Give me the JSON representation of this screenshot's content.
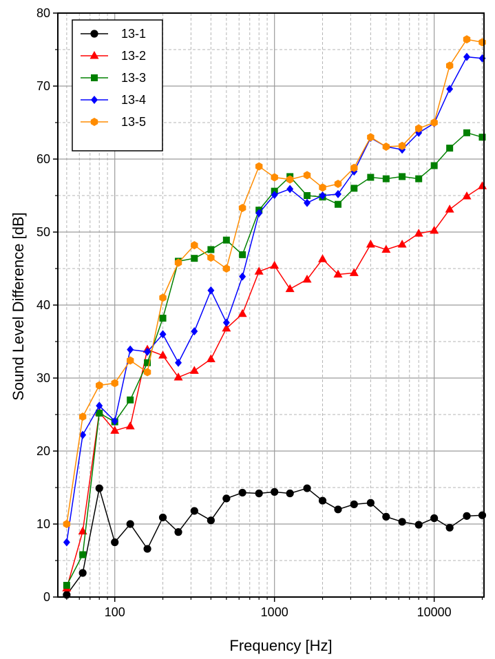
{
  "chart_data": {
    "type": "line",
    "x_scale": "log",
    "xlabel": "Frequency [Hz]",
    "ylabel": "Sound Level Difference [dB]",
    "xlim": [
      44,
      20500
    ],
    "ylim": [
      0,
      80
    ],
    "y_ticks": [
      0,
      10,
      20,
      30,
      40,
      50,
      60,
      70,
      80
    ],
    "x_ticks": [
      100,
      1000,
      10000
    ],
    "x_tick_labels": [
      "100",
      "1000",
      "10000"
    ],
    "grid": "major solid, minor dashed",
    "legend_position": "top-left",
    "x": [
      50,
      63,
      80,
      100,
      125,
      160,
      200,
      250,
      315,
      400,
      500,
      630,
      800,
      1000,
      1250,
      1600,
      2000,
      2500,
      3150,
      4000,
      5000,
      6300,
      8000,
      10000,
      12500,
      16000,
      20000
    ],
    "series": [
      {
        "name": "13-1",
        "color": "#000000",
        "marker": "circle",
        "values": [
          0.3,
          3.3,
          14.9,
          7.5,
          10.0,
          6.6,
          10.9,
          8.9,
          11.8,
          10.5,
          13.5,
          14.3,
          14.2,
          14.4,
          14.2,
          14.9,
          13.2,
          12.0,
          12.7,
          12.9,
          11.0,
          10.3,
          9.9,
          10.8,
          9.5,
          11.1,
          11.2
        ]
      },
      {
        "name": "13-2",
        "color": "#ff0000",
        "marker": "triangle",
        "values": [
          1.2,
          9.0,
          25.3,
          22.8,
          23.4,
          33.9,
          33.1,
          30.1,
          31.0,
          32.6,
          36.8,
          38.8,
          44.6,
          45.4,
          42.2,
          43.5,
          46.3,
          44.2,
          44.4,
          48.3,
          47.6,
          48.3,
          49.8,
          50.2,
          53.1,
          54.9,
          56.3
        ]
      },
      {
        "name": "13-3",
        "color": "#008000",
        "marker": "square",
        "values": [
          1.6,
          5.8,
          25.2,
          24.0,
          27.0,
          32.1,
          38.2,
          46.0,
          46.4,
          47.6,
          48.9,
          46.9,
          53.0,
          55.6,
          57.6,
          55.0,
          54.8,
          53.8,
          56.0,
          57.5,
          57.3,
          57.6,
          57.3,
          59.1,
          61.5,
          63.6,
          63.0
        ]
      },
      {
        "name": "13-4",
        "color": "#0000ff",
        "marker": "diamond",
        "values": [
          7.5,
          22.2,
          26.2,
          24.1,
          33.9,
          33.6,
          36.0,
          32.1,
          36.4,
          42.0,
          37.6,
          43.9,
          52.6,
          55.1,
          55.9,
          54.0,
          55.0,
          55.2,
          58.3,
          62.9,
          61.7,
          61.3,
          63.6,
          64.9,
          69.6,
          74.0,
          73.8
        ]
      },
      {
        "name": "13-5",
        "color": "#ff8c00",
        "marker": "hexagon",
        "values": [
          10.0,
          24.7,
          29.0,
          29.3,
          32.4,
          30.8,
          41.0,
          45.8,
          48.2,
          46.5,
          45.0,
          53.3,
          59.0,
          57.5,
          57.2,
          57.8,
          56.1,
          56.6,
          58.8,
          63.0,
          61.7,
          61.8,
          64.2,
          65.0,
          72.8,
          76.4,
          76.0
        ]
      }
    ]
  }
}
